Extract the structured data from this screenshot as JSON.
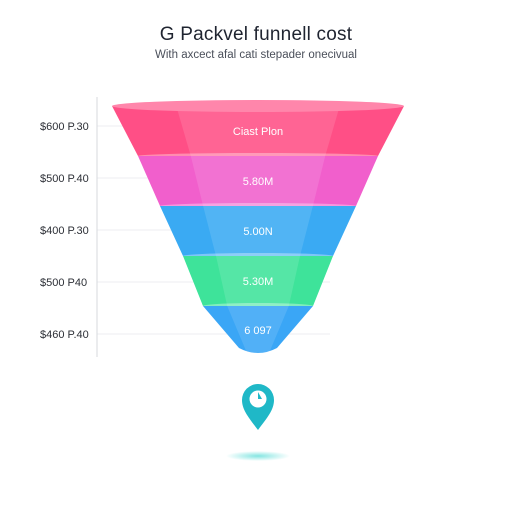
{
  "header": {
    "title": "G Packvel funnell cost",
    "subtitle": "With axcect afal cati stepader onecivual"
  },
  "chart_data": {
    "type": "funnel",
    "title": "G Packvel funnell cost",
    "subtitle": "With axcect afal cati stepader onecivual",
    "y_tick_labels": [
      "$600 P.30",
      "$500 P.40",
      "$400 P.30",
      "$500 P40",
      "$460 P.40"
    ],
    "stages": [
      {
        "label": "Ciast Plon",
        "color": "#ff4f86",
        "value": 100
      },
      {
        "label": "5.80M",
        "color": "#f15fcc",
        "value": 80
      },
      {
        "label": "5.00N",
        "color": "#3aaaf3",
        "value": 62
      },
      {
        "label": "5.30M",
        "color": "#3ee39a",
        "value": 44
      },
      {
        "label": "6 097",
        "color": "#3aa6f6",
        "value": 26
      }
    ],
    "grid": true,
    "legend": "none"
  },
  "marker": {
    "icon": "map-pin-icon",
    "color": "#1fb8c7"
  }
}
